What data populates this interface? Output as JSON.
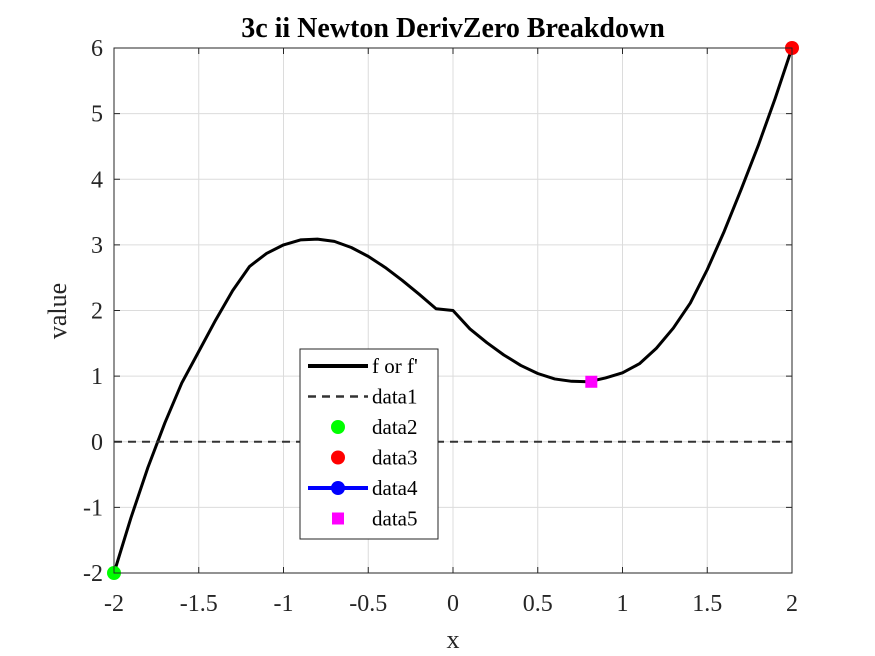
{
  "chart_data": {
    "type": "line",
    "title": "3c ii Newton DerivZero Breakdown",
    "xlabel": "x",
    "ylabel": "value",
    "xlim": [
      -2,
      2
    ],
    "ylim": [
      -2,
      6
    ],
    "xticks": [
      -2,
      -1.5,
      -1,
      -0.5,
      0,
      0.5,
      1,
      1.5,
      2
    ],
    "xtick_labels": [
      "-2",
      "-1.5",
      "-1",
      "-0.5",
      "0",
      "0.5",
      "1",
      "1.5",
      "2"
    ],
    "yticks": [
      -2,
      -1,
      0,
      1,
      2,
      3,
      4,
      5,
      6
    ],
    "ytick_labels": [
      "-2",
      "-1",
      "0",
      "1",
      "2",
      "3",
      "4",
      "5",
      "6"
    ],
    "grid": true,
    "legend_position": "lower-center",
    "series": [
      {
        "name": "f or f'",
        "style": "solid-line",
        "color": "#000000",
        "x": [
          -2,
          -1.9,
          -1.8,
          -1.7,
          -1.6,
          -1.5,
          -1.4,
          -1.3,
          -1.2,
          -1.1,
          -1.0,
          -0.9,
          -0.8,
          -0.7,
          -0.6,
          -0.5,
          -0.4,
          -0.3,
          -0.2,
          -0.1,
          0,
          0.1,
          0.2,
          0.3,
          0.4,
          0.5,
          0.6,
          0.7,
          0.8,
          0.9,
          1.0,
          1.1,
          1.2,
          1.3,
          1.4,
          1.5,
          1.6,
          1.7,
          1.8,
          1.9,
          2.0
        ],
        "y": [
          -2.0,
          -1.159,
          -0.392,
          0.287,
          0.896,
          1.375,
          1.856,
          2.303,
          2.672,
          2.869,
          3.0,
          3.076,
          3.088,
          3.053,
          2.96,
          2.825,
          2.656,
          2.46,
          2.248,
          2.027,
          2.0,
          1.719,
          1.51,
          1.322,
          1.163,
          1.04,
          0.957,
          0.921,
          0.914,
          0.972,
          1.05,
          1.189,
          1.425,
          1.732,
          2.113,
          2.623,
          3.206,
          3.845,
          4.507,
          5.227,
          6.0
        ]
      },
      {
        "name": "data1",
        "style": "dashed-line",
        "color": "#333333",
        "x": [
          -2,
          2
        ],
        "y": [
          0,
          0
        ]
      },
      {
        "name": "data2",
        "style": "marker-circle",
        "color": "#00ff00",
        "x": [
          -2
        ],
        "y": [
          -2
        ]
      },
      {
        "name": "data3",
        "style": "marker-circle",
        "color": "#ff0000",
        "x": [
          2
        ],
        "y": [
          6
        ]
      },
      {
        "name": "data4",
        "style": "line-marker",
        "color": "#0000ff",
        "x": [],
        "y": []
      },
      {
        "name": "data5",
        "style": "marker-square",
        "color": "#ff00ff",
        "x": [
          0.816
        ],
        "y": [
          0.914
        ]
      }
    ]
  }
}
